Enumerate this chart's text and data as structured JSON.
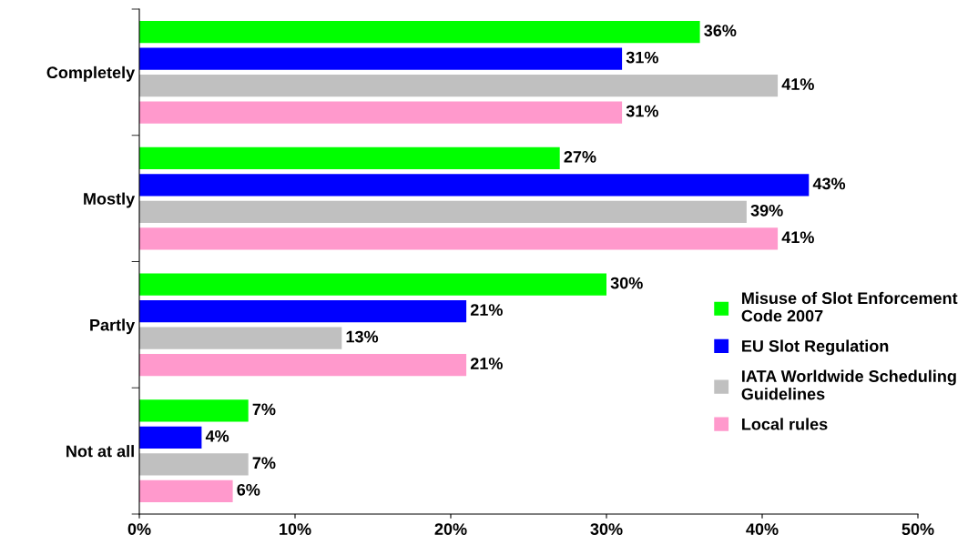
{
  "chart_data": {
    "type": "bar",
    "orientation": "horizontal",
    "categories": [
      "Completely",
      "Mostly",
      "Partly",
      "Not at all"
    ],
    "series": [
      {
        "name": "Misuse of Slot Enforcement\nCode 2007",
        "color": "#00ff00",
        "values": [
          36,
          27,
          30,
          7
        ],
        "value_labels": [
          "36%",
          "27%",
          "30%",
          "7%"
        ]
      },
      {
        "name": "EU Slot Regulation",
        "color": "#0000ff",
        "values": [
          31,
          43,
          21,
          4
        ],
        "value_labels": [
          "31%",
          "43%",
          "21%",
          "4%"
        ]
      },
      {
        "name": "IATA Worldwide Scheduling\nGuidelines",
        "color": "#c0c0c0",
        "values": [
          41,
          39,
          13,
          7
        ],
        "value_labels": [
          "41%",
          "39%",
          "13%",
          "7%"
        ]
      },
      {
        "name": "Local rules",
        "color": "#ff99cc",
        "values": [
          31,
          41,
          21,
          6
        ],
        "value_labels": [
          "31%",
          "41%",
          "21%",
          "6%"
        ]
      }
    ],
    "xlim": [
      0,
      50
    ],
    "xticks": [
      {
        "value": 0,
        "label": "0%"
      },
      {
        "value": 10,
        "label": "10%"
      },
      {
        "value": 20,
        "label": "20%"
      },
      {
        "value": 30,
        "label": "30%"
      },
      {
        "value": 40,
        "label": "40%"
      },
      {
        "value": 50,
        "label": "50%"
      }
    ],
    "legend": "right",
    "grid": false
  }
}
